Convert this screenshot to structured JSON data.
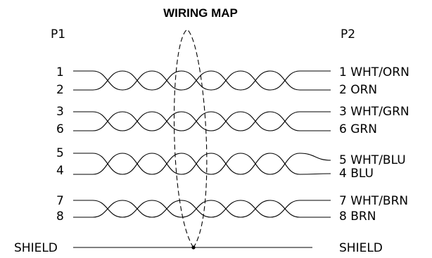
{
  "title": "WIRING MAP",
  "p1_header": "P1",
  "p2_header": "P2",
  "colors": {
    "line": "#000000",
    "background": "#ffffff"
  },
  "pairs": [
    {
      "left_top": "1",
      "left_bottom": "2",
      "right_top": "1 WHT/ORN",
      "right_bottom": "2 ORN"
    },
    {
      "left_top": "3",
      "left_bottom": "6",
      "right_top": "3 WHT/GRN",
      "right_bottom": "6 GRN"
    },
    {
      "left_top": "5",
      "left_bottom": "4",
      "right_top": "5 WHT/BLU",
      "right_bottom": "4 BLU"
    },
    {
      "left_top": "7",
      "left_bottom": "8",
      "right_top": "7 WHT/BRN",
      "right_bottom": "8 BRN"
    }
  ],
  "shield": {
    "left_label": "SHIELD",
    "right_label": "SHIELD"
  }
}
